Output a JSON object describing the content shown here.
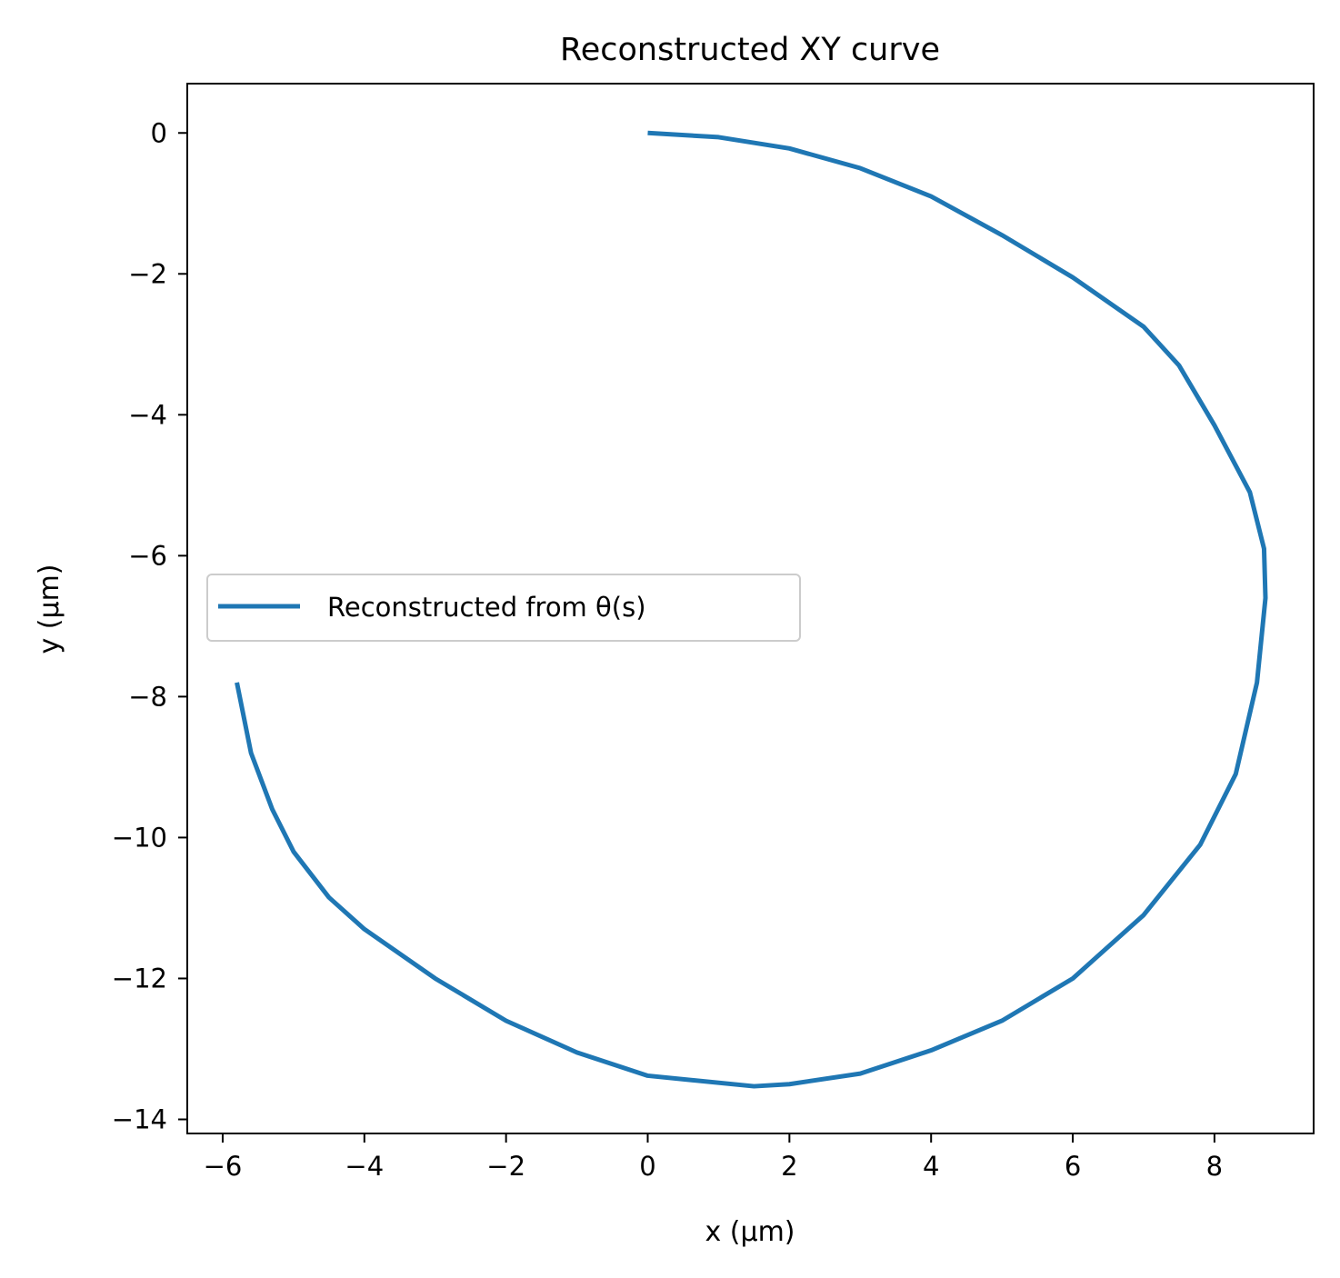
{
  "chart_data": {
    "type": "line",
    "title": "Reconstructed XY curve",
    "xlabel": "x (µm)",
    "ylabel": "y (µm)",
    "xlim": [
      -6.5,
      9.4
    ],
    "ylim": [
      -14.2,
      0.7
    ],
    "xticks": [
      -6,
      -4,
      -2,
      0,
      2,
      4,
      6,
      8
    ],
    "yticks": [
      0,
      -2,
      -4,
      -6,
      -8,
      -10,
      -12,
      -14
    ],
    "xtick_labels": [
      "−6",
      "−4",
      "−2",
      "0",
      "2",
      "4",
      "6",
      "8"
    ],
    "ytick_labels": [
      "0",
      "−2",
      "−4",
      "−6",
      "−8",
      "−10",
      "−12",
      "−14"
    ],
    "grid": false,
    "legend_position": "center-left",
    "series": [
      {
        "name": "Reconstructed from θ(s)",
        "color": "#1f77b4",
        "x": [
          0,
          1,
          2,
          3,
          4,
          5,
          6,
          7,
          7.5,
          8.0,
          8.5,
          8.7,
          8.72,
          8.6,
          8.3,
          7.8,
          7.0,
          6.0,
          5.0,
          4.0,
          3.0,
          2.0,
          1.5,
          0,
          -1,
          -2,
          -3,
          -4,
          -4.5,
          -5,
          -5.3,
          -5.6,
          -5.8
        ],
        "y": [
          0,
          -0.06,
          -0.22,
          -0.5,
          -0.9,
          -1.45,
          -2.05,
          -2.75,
          -3.3,
          -4.15,
          -5.1,
          -5.9,
          -6.6,
          -7.8,
          -9.1,
          -10.1,
          -11.1,
          -12.0,
          -12.6,
          -13.02,
          -13.35,
          -13.5,
          -13.53,
          -13.38,
          -13.05,
          -12.6,
          -12.0,
          -11.3,
          -10.85,
          -10.2,
          -9.6,
          -8.8,
          -7.8
        ]
      }
    ]
  }
}
